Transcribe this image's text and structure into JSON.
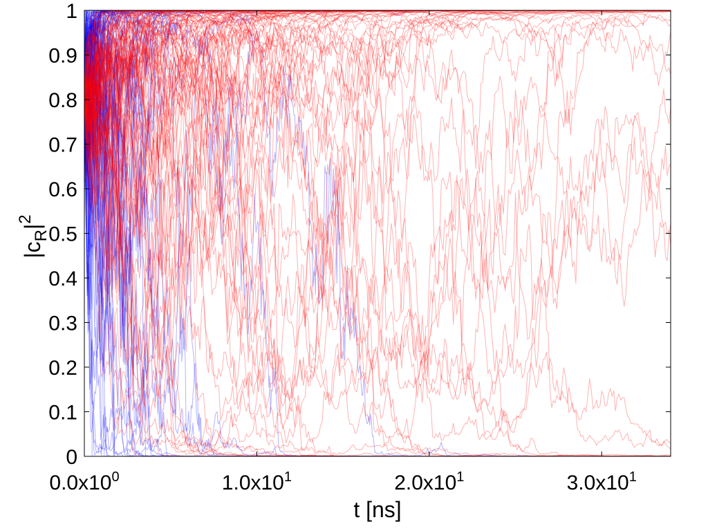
{
  "chart_data": {
    "type": "line",
    "title": "",
    "xlabel": "t [ns]",
    "ylabel_parts": {
      "base": "|c",
      "sub": "R",
      "close": "|",
      "sup": "2"
    },
    "xlim": [
      0,
      34
    ],
    "ylim": [
      0,
      1
    ],
    "x_ticks": [
      {
        "value": 0,
        "mantissa": "0.0x10",
        "exp": "0"
      },
      {
        "value": 10,
        "mantissa": "1.0x10",
        "exp": "1"
      },
      {
        "value": 20,
        "mantissa": "2.0x10",
        "exp": "1"
      },
      {
        "value": 30,
        "mantissa": "3.0x10",
        "exp": "1"
      }
    ],
    "y_ticks": [
      {
        "value": 0,
        "label": "0"
      },
      {
        "value": 0.1,
        "label": "0.1"
      },
      {
        "value": 0.2,
        "label": "0.2"
      },
      {
        "value": 0.3,
        "label": "0.3"
      },
      {
        "value": 0.4,
        "label": "0.4"
      },
      {
        "value": 0.5,
        "label": "0.5"
      },
      {
        "value": 0.6,
        "label": "0.6"
      },
      {
        "value": 0.7,
        "label": "0.7"
      },
      {
        "value": 0.8,
        "label": "0.8"
      },
      {
        "value": 0.9,
        "label": "0.9"
      },
      {
        "value": 1,
        "label": "1"
      }
    ],
    "grid": false,
    "legend": "none",
    "initial_value": 0.8,
    "series": [
      {
        "color": "#0000ff",
        "opacity": 0.3,
        "trajectory_count": 110,
        "description": "trajectories collapsing quickly to 0 or 1",
        "representative": [
          {
            "x": [
              0,
              0.5,
              1,
              1.5,
              2,
              2.5,
              3,
              4
            ],
            "y": [
              0.8,
              0.86,
              0.92,
              0.96,
              0.98,
              0.99,
              1.0,
              1.0
            ]
          },
          {
            "x": [
              0,
              0.5,
              1,
              2,
              3,
              4,
              5,
              6
            ],
            "y": [
              0.8,
              0.62,
              0.45,
              0.28,
              0.15,
              0.06,
              0.02,
              0.0
            ]
          },
          {
            "x": [
              0,
              1,
              2,
              3,
              4,
              5,
              6,
              8,
              10
            ],
            "y": [
              0.8,
              0.68,
              0.55,
              0.42,
              0.3,
              0.2,
              0.12,
              0.04,
              0.0
            ]
          }
        ]
      },
      {
        "color": "#ff0000",
        "opacity": 0.3,
        "trajectory_count": 110,
        "description": "slower trajectories, most reaching 1, some reaching 0 after 10-30 ns",
        "representative": [
          {
            "x": [
              0,
              2,
              4,
              6,
              8,
              10,
              12,
              14
            ],
            "y": [
              0.8,
              0.83,
              0.87,
              0.91,
              0.95,
              0.98,
              0.99,
              1.0
            ]
          },
          {
            "x": [
              0,
              4,
              8,
              12,
              14,
              16,
              18,
              20
            ],
            "y": [
              0.8,
              0.78,
              0.7,
              0.55,
              0.35,
              0.15,
              0.05,
              0.0
            ]
          },
          {
            "x": [
              0,
              5,
              10,
              15,
              18,
              20,
              22,
              24
            ],
            "y": [
              0.8,
              0.84,
              0.88,
              0.86,
              0.6,
              0.2,
              0.05,
              0.0
            ]
          },
          {
            "x": [
              0,
              5,
              10,
              15,
              20,
              24,
              26,
              27
            ],
            "y": [
              0.8,
              0.83,
              0.86,
              0.9,
              0.93,
              0.96,
              0.99,
              1.0
            ]
          }
        ]
      }
    ]
  }
}
